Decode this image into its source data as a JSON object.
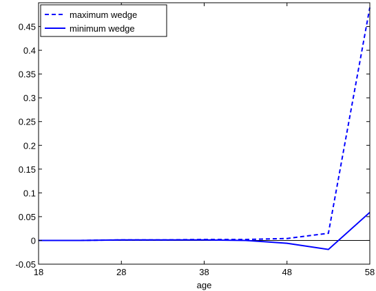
{
  "chart_data": {
    "type": "line",
    "xlabel": "age",
    "ylabel": "",
    "xlim": [
      18,
      58
    ],
    "ylim": [
      -0.05,
      0.5
    ],
    "x_ticks": [
      18,
      28,
      38,
      48,
      58
    ],
    "y_ticks": [
      -0.05,
      0,
      0.05,
      0.1,
      0.15,
      0.2,
      0.25,
      0.3,
      0.35,
      0.4,
      0.45
    ],
    "y_tick_labels": [
      "-0.05",
      "0",
      "0.05",
      "0.1",
      "0.15",
      "0.2",
      "0.25",
      "0.3",
      "0.35",
      "0.4",
      "0.45"
    ],
    "reference_line": 0,
    "legend_position": "top-left",
    "series": [
      {
        "name": "maximum wedge",
        "style": "dashed",
        "color": "#0000ff",
        "x": [
          18,
          23,
          28,
          33,
          38,
          43,
          48,
          53,
          58
        ],
        "y": [
          0.0,
          0.0,
          0.001,
          0.001,
          0.002,
          0.002,
          0.004,
          0.015,
          0.49
        ]
      },
      {
        "name": "minimum wedge",
        "style": "solid",
        "color": "#0000ff",
        "x": [
          18,
          23,
          28,
          33,
          38,
          43,
          48,
          53,
          58
        ],
        "y": [
          0.0,
          0.0,
          0.001,
          0.001,
          0.001,
          0.0,
          -0.006,
          -0.019,
          0.059
        ]
      }
    ]
  }
}
